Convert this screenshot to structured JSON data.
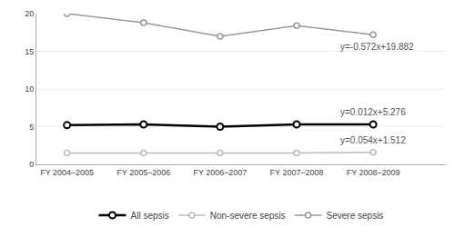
{
  "chart_data": {
    "type": "line",
    "categories": [
      "FY 2004–2005",
      "FY 2005–2006",
      "FY 2006–2007",
      "FY 2007–2008",
      "FY 2008–2009"
    ],
    "series": [
      {
        "name": "All sepsis",
        "color": "#000000",
        "marker": "circle",
        "values": [
          5.2,
          5.3,
          5.0,
          5.3,
          5.3
        ]
      },
      {
        "name": "Non-severe sepsis",
        "color": "#bbbbbb",
        "marker": "circle",
        "values": [
          1.5,
          1.5,
          1.5,
          1.5,
          1.6
        ]
      },
      {
        "name": "Severe sepsis",
        "color": "#999999",
        "marker": "circle",
        "values": [
          20.0,
          18.8,
          17.0,
          18.4,
          17.2
        ]
      }
    ],
    "annotations": [
      "y=0.012x+5.276",
      "y=0.054x+1.512",
      "y=-0.572x+19.882"
    ],
    "ylim": [
      0,
      20
    ],
    "yticks": [
      0,
      5,
      10,
      15,
      20
    ],
    "grid": true,
    "legend": "bottom"
  }
}
